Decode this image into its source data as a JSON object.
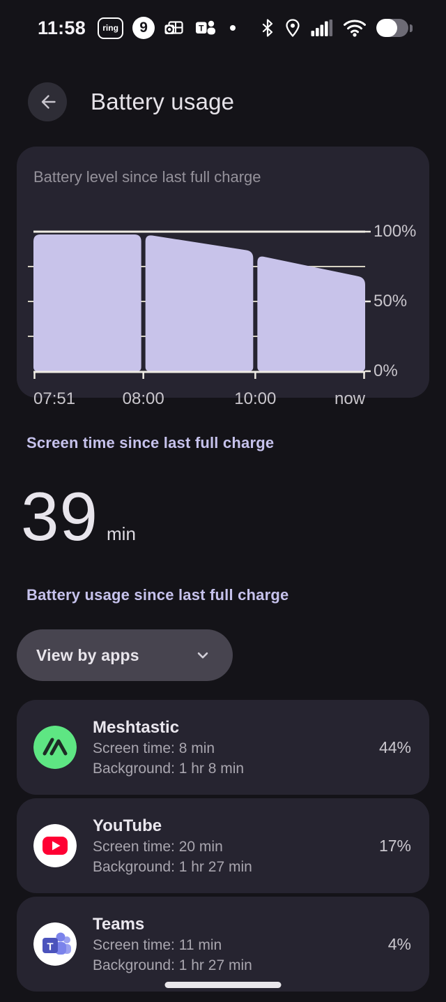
{
  "status_bar": {
    "time": "11:58",
    "ring_label": "ring",
    "nine_label": "9",
    "battery_fill_pct": 65
  },
  "header": {
    "title": "Battery usage"
  },
  "chart_card": {
    "title": "Battery level since last full charge",
    "chart_data": {
      "type": "area",
      "title": "Battery level since last full charge",
      "ylim": [
        0,
        100
      ],
      "y_ticks": [
        {
          "label": "100%",
          "pct": 100
        },
        {
          "label": "50%",
          "pct": 50
        },
        {
          "label": "0%",
          "pct": 0
        }
      ],
      "minor_gridlines_pct": [
        75,
        50,
        25
      ],
      "x_tick_labels": [
        "07:51",
        "08:00",
        "10:00",
        "now"
      ],
      "segments": [
        {
          "from": "07:51",
          "to": "08:00",
          "start_pct": 98,
          "end_pct": 98
        },
        {
          "from": "08:00",
          "to": "10:00",
          "start_pct": 98,
          "end_pct": 86
        },
        {
          "from": "10:00",
          "to": "now",
          "start_pct": 83,
          "end_pct": 67
        }
      ],
      "fill_color": "#c8c3ea",
      "major_line_color": "#efece4",
      "minor_line_color": "#d7d3c3"
    }
  },
  "screen_time": {
    "heading": "Screen time since last full charge",
    "value": "39",
    "unit": "min"
  },
  "usage_section": {
    "heading": "Battery usage since last full charge",
    "filter_label": "View by apps"
  },
  "apps": [
    {
      "name": "Meshtastic",
      "screen_time": "Screen time: 8 min",
      "background": "Background: 1 hr 8 min",
      "percent": "44%",
      "icon": "meshtastic-icon",
      "icon_color": "#5ee683"
    },
    {
      "name": "YouTube",
      "screen_time": "Screen time: 20 min",
      "background": "Background: 1 hr 27 min",
      "percent": "17%",
      "icon": "youtube-icon",
      "icon_color": "#ff0033"
    },
    {
      "name": "Teams",
      "screen_time": "Screen time: 11 min",
      "background": "Background: 1 hr 27 min",
      "percent": "4%",
      "icon": "teams-icon",
      "icon_color": "#5059c9"
    }
  ],
  "colors": {
    "page_bg": "#141318",
    "card_bg": "#262430",
    "chip_bg": "#47444f",
    "accent_lavender": "#c6c2ec",
    "chart_fill": "#c8c3ea"
  }
}
